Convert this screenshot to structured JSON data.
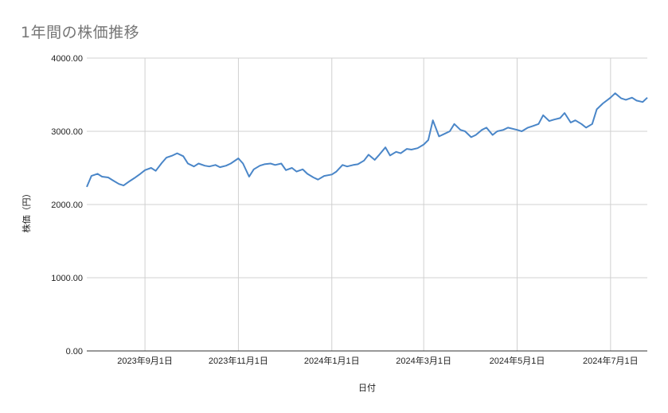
{
  "chart_data": {
    "type": "line",
    "title": "1年間の株価推移",
    "xlabel": "日付",
    "ylabel": "株価（円）",
    "ylim": [
      0,
      4000
    ],
    "yticks": [
      "0.00",
      "1000.00",
      "2000.00",
      "3000.00",
      "4000.00"
    ],
    "xticks": [
      "2023年9月1日",
      "2023年11月1日",
      "2024年1月1日",
      "2024年3月1日",
      "2024年5月1日",
      "2024年7月1日"
    ],
    "x_range": [
      "2023-07-25",
      "2024-07-25"
    ],
    "grid": true,
    "legend": "none",
    "color": "#4a86c8",
    "series": [
      {
        "x": [
          "2023-07-25",
          "2023-07-28",
          "2023-08-01",
          "2023-08-04",
          "2023-08-08",
          "2023-08-11",
          "2023-08-15",
          "2023-08-18",
          "2023-08-22",
          "2023-08-25",
          "2023-08-29",
          "2023-09-01",
          "2023-09-05",
          "2023-09-08",
          "2023-09-12",
          "2023-09-15",
          "2023-09-19",
          "2023-09-22",
          "2023-09-26",
          "2023-09-29",
          "2023-10-03",
          "2023-10-06",
          "2023-10-10",
          "2023-10-13",
          "2023-10-17",
          "2023-10-20",
          "2023-10-24",
          "2023-10-27",
          "2023-11-01",
          "2023-11-04",
          "2023-11-08",
          "2023-11-11",
          "2023-11-15",
          "2023-11-18",
          "2023-11-22",
          "2023-11-25",
          "2023-11-29",
          "2023-12-02",
          "2023-12-06",
          "2023-12-09",
          "2023-12-13",
          "2023-12-16",
          "2023-12-20",
          "2023-12-23",
          "2023-12-27",
          "2024-01-01",
          "2024-01-04",
          "2024-01-08",
          "2024-01-11",
          "2024-01-15",
          "2024-01-18",
          "2024-01-22",
          "2024-01-25",
          "2024-01-29",
          "2024-02-01",
          "2024-02-05",
          "2024-02-08",
          "2024-02-12",
          "2024-02-15",
          "2024-02-19",
          "2024-02-22",
          "2024-02-26",
          "2024-03-01",
          "2024-03-04",
          "2024-03-07",
          "2024-03-11",
          "2024-03-14",
          "2024-03-18",
          "2024-03-21",
          "2024-03-25",
          "2024-03-28",
          "2024-04-01",
          "2024-04-04",
          "2024-04-08",
          "2024-04-11",
          "2024-04-15",
          "2024-04-18",
          "2024-04-22",
          "2024-04-25",
          "2024-05-01",
          "2024-05-04",
          "2024-05-08",
          "2024-05-11",
          "2024-05-15",
          "2024-05-18",
          "2024-05-22",
          "2024-05-25",
          "2024-05-29",
          "2024-06-01",
          "2024-06-05",
          "2024-06-08",
          "2024-06-12",
          "2024-06-15",
          "2024-06-19",
          "2024-06-22",
          "2024-06-26",
          "2024-07-01",
          "2024-07-04",
          "2024-07-08",
          "2024-07-11",
          "2024-07-15",
          "2024-07-18",
          "2024-07-22",
          "2024-07-25"
        ],
        "y": [
          2240,
          2390,
          2420,
          2380,
          2370,
          2330,
          2280,
          2260,
          2320,
          2360,
          2420,
          2470,
          2500,
          2460,
          2570,
          2640,
          2670,
          2700,
          2660,
          2560,
          2520,
          2560,
          2530,
          2520,
          2540,
          2510,
          2530,
          2560,
          2630,
          2560,
          2380,
          2480,
          2530,
          2550,
          2560,
          2540,
          2560,
          2470,
          2500,
          2450,
          2480,
          2420,
          2370,
          2340,
          2390,
          2410,
          2450,
          2540,
          2520,
          2540,
          2550,
          2600,
          2680,
          2610,
          2680,
          2780,
          2670,
          2720,
          2700,
          2760,
          2750,
          2770,
          2820,
          2880,
          3150,
          2930,
          2960,
          3000,
          3100,
          3020,
          3000,
          2920,
          2950,
          3020,
          3050,
          2950,
          3000,
          3020,
          3050,
          3020,
          3000,
          3050,
          3070,
          3100,
          3220,
          3140,
          3160,
          3180,
          3250,
          3120,
          3150,
          3100,
          3050,
          3100,
          3300,
          3380,
          3460,
          3520,
          3450,
          3430,
          3460,
          3420,
          3400,
          3460
        ]
      }
    ]
  }
}
